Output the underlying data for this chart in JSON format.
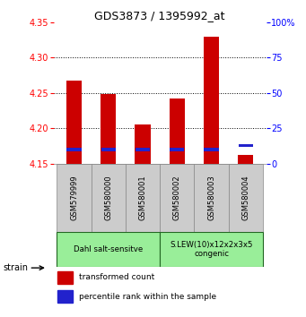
{
  "title": "GDS3873 / 1395992_at",
  "samples": [
    "GSM579999",
    "GSM580000",
    "GSM580001",
    "GSM580002",
    "GSM580003",
    "GSM580004"
  ],
  "red_values": [
    4.268,
    4.248,
    4.205,
    4.242,
    4.33,
    4.163
  ],
  "blue_percentiles": [
    10,
    10,
    10,
    10,
    10,
    13
  ],
  "ylim_left": [
    4.15,
    4.35
  ],
  "yticks_left": [
    4.15,
    4.2,
    4.25,
    4.3,
    4.35
  ],
  "yticks_right": [
    0,
    25,
    50,
    75,
    100
  ],
  "ylim_right": [
    0,
    100
  ],
  "red_color": "#cc0000",
  "blue_color": "#2222cc",
  "bar_width": 0.45,
  "groups": [
    {
      "label": "Dahl salt-sensitve",
      "start": 0,
      "end": 3,
      "color": "#99ee99"
    },
    {
      "label": "S.LEW(10)x12x2x3x5\ncongenic",
      "start": 3,
      "end": 6,
      "color": "#99ee99"
    }
  ],
  "strain_label": "strain",
  "legend_red": "transformed count",
  "legend_blue": "percentile rank within the sample",
  "base_value": 4.15,
  "gridline_dotted": [
    4.2,
    4.25,
    4.3
  ],
  "sample_box_color": "#cccccc",
  "sample_box_edge": "#888888"
}
